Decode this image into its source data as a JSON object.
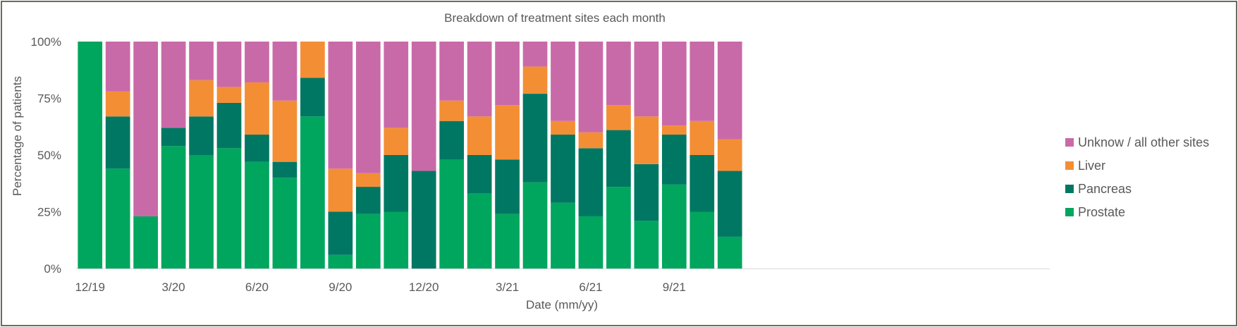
{
  "chart_data": {
    "type": "bar",
    "stacked": true,
    "title": "Breakdown of treatment sites each month",
    "xlabel": "Date (mm/yy)",
    "ylabel": "Percentage of patients",
    "ylim": [
      0,
      100
    ],
    "y_ticks": [
      "0%",
      "25%",
      "50%",
      "75%",
      "100%"
    ],
    "y_tick_values": [
      0,
      25,
      50,
      75,
      100
    ],
    "categories": [
      "12/19",
      "1/20",
      "2/20",
      "3/20",
      "4/20",
      "5/20",
      "6/20",
      "7/20",
      "8/20",
      "9/20",
      "10/20",
      "11/20",
      "12/20",
      "1/21",
      "2/21",
      "3/21",
      "4/21",
      "5/21",
      "6/21",
      "7/21",
      "8/21",
      "9/21",
      "10/21",
      "11/21"
    ],
    "x_tick_labels": [
      {
        "index": 0,
        "label": "12/19"
      },
      {
        "index": 3,
        "label": "3/20"
      },
      {
        "index": 6,
        "label": "6/20"
      },
      {
        "index": 9,
        "label": "9/20"
      },
      {
        "index": 12,
        "label": "12/20"
      },
      {
        "index": 15,
        "label": "3/21"
      },
      {
        "index": 18,
        "label": "6/21"
      },
      {
        "index": 21,
        "label": "9/21"
      }
    ],
    "total_slots": 35,
    "grid": false,
    "legend_position": "right",
    "series": [
      {
        "name": "Prostate",
        "color": "#00a65e",
        "values": [
          100,
          44,
          23,
          54,
          50,
          53,
          47,
          40,
          67,
          6,
          24,
          25,
          0,
          48,
          33,
          24,
          38,
          29,
          23,
          36,
          21,
          37,
          25,
          14
        ]
      },
      {
        "name": "Pancreas",
        "color": "#007763",
        "values": [
          0,
          23,
          0,
          8,
          17,
          20,
          12,
          7,
          17,
          19,
          12,
          25,
          43,
          17,
          17,
          24,
          39,
          30,
          30,
          25,
          25,
          22,
          25,
          29
        ]
      },
      {
        "name": "Liver",
        "color": "#f38e35",
        "values": [
          0,
          11,
          0,
          0,
          16,
          7,
          23,
          27,
          16,
          19,
          6,
          12,
          0,
          9,
          17,
          24,
          12,
          6,
          7,
          11,
          21,
          4,
          15,
          14
        ]
      },
      {
        "name": "Unknow / all other sites",
        "color": "#c96aa8",
        "values": [
          0,
          22,
          77,
          38,
          17,
          20,
          18,
          26,
          0,
          56,
          58,
          38,
          57,
          26,
          33,
          28,
          11,
          35,
          40,
          28,
          33,
          37,
          35,
          43
        ]
      }
    ],
    "legend_order": [
      "Unknow / all other sites",
      "Liver",
      "Pancreas",
      "Prostate"
    ]
  }
}
